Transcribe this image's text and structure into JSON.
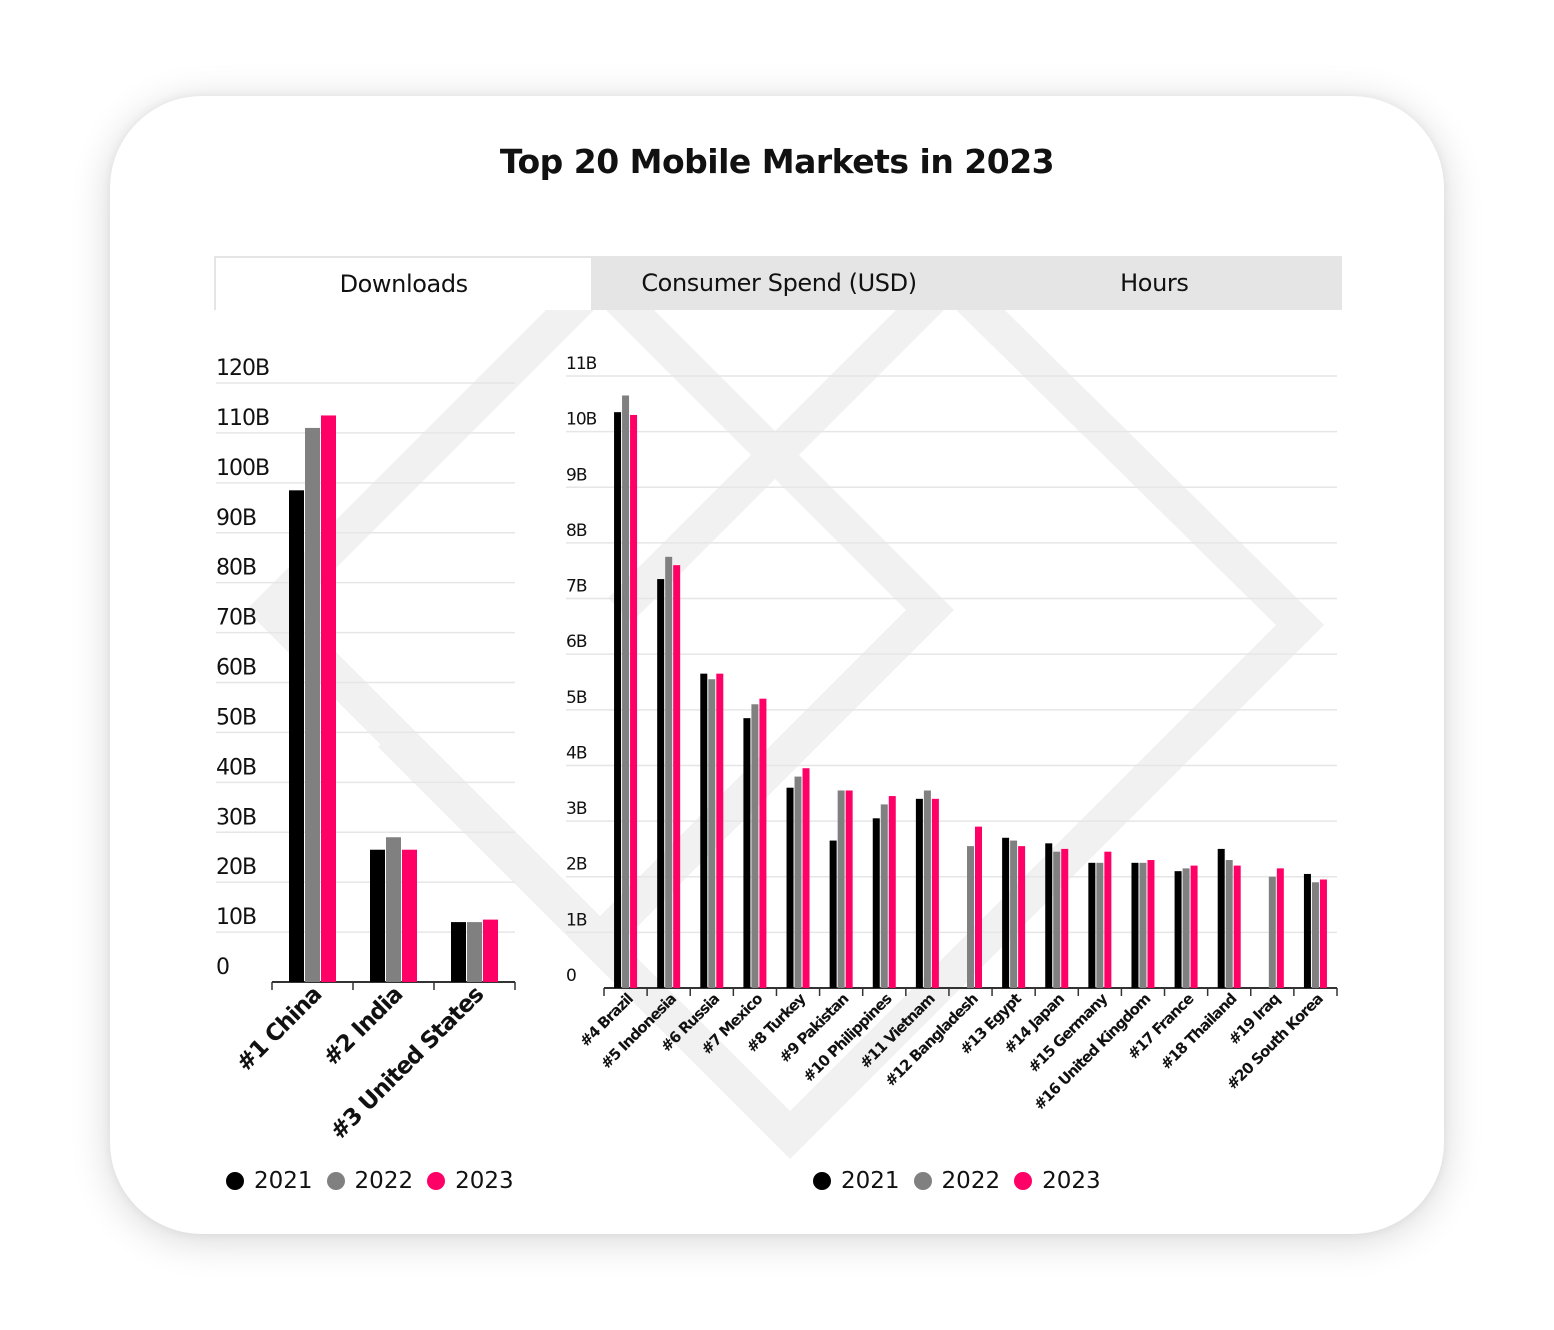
{
  "title": "Top 20 Mobile Markets in 2023",
  "tabs": [
    {
      "label": "Downloads",
      "active": true
    },
    {
      "label": "Consumer Spend (USD)",
      "active": false
    },
    {
      "label": "Hours",
      "active": false
    }
  ],
  "colors": {
    "2021": "#000000",
    "2022": "#808080",
    "2023": "#ff0066",
    "grid": "#e6e6e6",
    "axis": "#333333"
  },
  "legend": [
    {
      "label": "2021",
      "color": "#000000"
    },
    {
      "label": "2022",
      "color": "#808080"
    },
    {
      "label": "2023",
      "color": "#ff0066"
    }
  ],
  "chart_data": [
    {
      "type": "bar",
      "categories": [
        "#1 China",
        "#2 India",
        "#3 United States"
      ],
      "yticks": [
        "0",
        "10B",
        "20B",
        "30B",
        "40B",
        "50B",
        "60B",
        "70B",
        "80B",
        "90B",
        "100B",
        "110B",
        "120B"
      ],
      "ylim": [
        0,
        120
      ],
      "series": [
        {
          "name": "2021",
          "values": [
            98.5,
            26.5,
            12
          ]
        },
        {
          "name": "2022",
          "values": [
            111,
            29,
            12
          ]
        },
        {
          "name": "2023",
          "values": [
            113.5,
            26.5,
            12.5
          ]
        }
      ]
    },
    {
      "type": "bar",
      "categories": [
        "#4 Brazil",
        "#5 Indonesia",
        "#6 Russia",
        "#7 Mexico",
        "#8 Turkey",
        "#9 Pakistan",
        "#10 Philippines",
        "#11 Vietnam",
        "#12 Bangladesh",
        "#13 Egypt",
        "#14 Japan",
        "#15 Germany",
        "#16 United Kingdom",
        "#17 France",
        "#18 Thailand",
        "#19 Iraq",
        "#20 South Korea"
      ],
      "yticks": [
        "0",
        "1B",
        "2B",
        "3B",
        "4B",
        "5B",
        "6B",
        "7B",
        "8B",
        "9B",
        "10B",
        "11B"
      ],
      "ylim": [
        0,
        11
      ],
      "series": [
        {
          "name": "2021",
          "values": [
            10.35,
            7.35,
            5.65,
            4.85,
            3.6,
            2.65,
            3.05,
            3.4,
            null,
            2.7,
            2.6,
            2.25,
            2.25,
            2.1,
            2.5,
            null,
            2.05
          ]
        },
        {
          "name": "2022",
          "values": [
            10.65,
            7.75,
            5.55,
            5.1,
            3.8,
            3.55,
            3.3,
            3.55,
            2.55,
            2.65,
            2.45,
            2.25,
            2.25,
            2.15,
            2.3,
            2.0,
            1.9
          ]
        },
        {
          "name": "2023",
          "values": [
            10.3,
            7.6,
            5.65,
            5.2,
            3.95,
            3.55,
            3.45,
            3.4,
            2.9,
            2.55,
            2.5,
            2.45,
            2.3,
            2.2,
            2.2,
            2.15,
            1.95
          ]
        }
      ]
    }
  ]
}
